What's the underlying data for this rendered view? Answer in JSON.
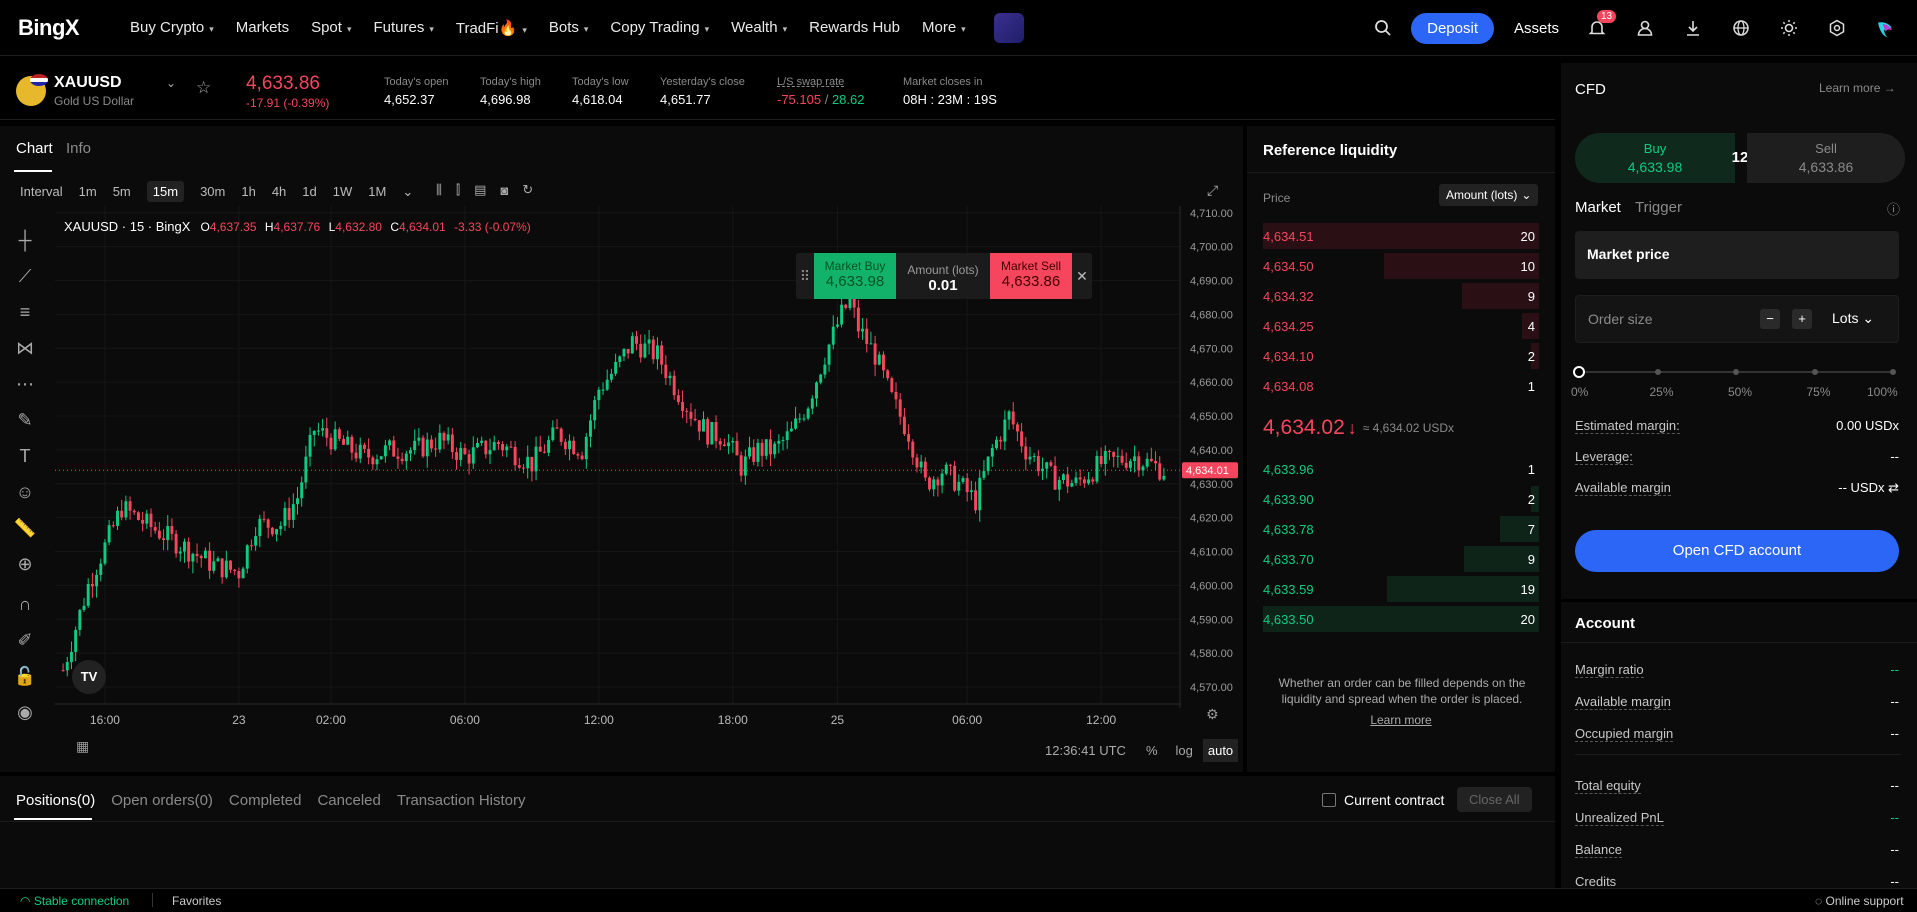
{
  "brand": {
    "logo": "BingX"
  },
  "nav": {
    "items": [
      {
        "label": "Buy Crypto",
        "caret": true
      },
      {
        "label": "Markets",
        "caret": false
      },
      {
        "label": "Spot",
        "caret": true
      },
      {
        "label": "Futures",
        "caret": true
      },
      {
        "label": "TradFi🔥",
        "caret": true
      },
      {
        "label": "Bots",
        "caret": true
      },
      {
        "label": "Copy Trading",
        "caret": true
      },
      {
        "label": "Wealth",
        "caret": true
      },
      {
        "label": "Rewards Hub",
        "caret": false
      },
      {
        "label": "More",
        "caret": true
      }
    ],
    "deposit_label": "Deposit",
    "assets_label": "Assets",
    "notification_count": "13"
  },
  "ticker": {
    "symbol": "XAUUSD",
    "name": "Gold US Dollar",
    "last_price": "4,633.86",
    "change": "-17.91 (-0.39%)",
    "stats": [
      {
        "label": "Today's open",
        "value": "4,652.37"
      },
      {
        "label": "Today's high",
        "value": "4,696.98"
      },
      {
        "label": "Today's low",
        "value": "4,618.04"
      },
      {
        "label": "Yesterday's close",
        "value": "4,651.77"
      }
    ],
    "swap_label": "L/S swap rate",
    "swap_long": "-75.105",
    "swap_sep": " / ",
    "swap_short": "28.62",
    "close_label": "Market closes in",
    "close_value": "08H : 23M : 19S"
  },
  "chart_tabs": {
    "chart": "Chart",
    "info": "Info"
  },
  "toolbar": {
    "interval_label": "Interval",
    "intervals": [
      "1m",
      "5m",
      "15m",
      "30m",
      "1h",
      "4h",
      "1d",
      "1W",
      "1M"
    ],
    "active_interval": "15m"
  },
  "legend": {
    "title": "XAUUSD · 15 · BingX",
    "o_label": "O",
    "o": "4,637.35",
    "h_label": "H",
    "h": "4,637.76",
    "l_label": "L",
    "l": "4,632.80",
    "c_label": "C",
    "c": "4,634.01",
    "chg": "-3.33 (-0.07%)"
  },
  "quick_trade": {
    "buy_label": "Market Buy",
    "buy_price": "4,633.98",
    "amount_label": "Amount (lots)",
    "amount": "0.01",
    "sell_label": "Market Sell",
    "sell_price": "4,633.86"
  },
  "chart_data": {
    "type": "candlestick",
    "ylim": [
      4565,
      4712
    ],
    "yticks": [
      "4,710.00",
      "4,700.00",
      "4,690.00",
      "4,680.00",
      "4,670.00",
      "4,660.00",
      "4,650.00",
      "4,640.00",
      "4,630.00",
      "4,620.00",
      "4,610.00",
      "4,600.00",
      "4,590.00",
      "4,580.00",
      "4,570.00"
    ],
    "ytick_values": [
      4710,
      4700,
      4690,
      4680,
      4670,
      4660,
      4650,
      4640,
      4630,
      4620,
      4610,
      4600,
      4590,
      4580,
      4570
    ],
    "xticks": [
      "16:00",
      "23",
      "02:00",
      "06:00",
      "12:00",
      "18:00",
      "25",
      "06:00",
      "12:00"
    ],
    "xtick_index": [
      10,
      42,
      64,
      96,
      128,
      160,
      185,
      216,
      248
    ],
    "candle_count": 264,
    "last_price_label": "4,634.01",
    "last_price": 4634.01,
    "close_path": [
      [
        0,
        4575
      ],
      [
        6,
        4600
      ],
      [
        14,
        4623
      ],
      [
        20,
        4618
      ],
      [
        28,
        4612
      ],
      [
        36,
        4606
      ],
      [
        42,
        4604
      ],
      [
        46,
        4618
      ],
      [
        52,
        4618
      ],
      [
        56,
        4626
      ],
      [
        60,
        4646
      ],
      [
        66,
        4642
      ],
      [
        72,
        4638
      ],
      [
        78,
        4640
      ],
      [
        84,
        4640
      ],
      [
        90,
        4643
      ],
      [
        96,
        4638
      ],
      [
        104,
        4642
      ],
      [
        112,
        4636
      ],
      [
        118,
        4645
      ],
      [
        124,
        4640
      ],
      [
        128,
        4658
      ],
      [
        132,
        4664
      ],
      [
        136,
        4672
      ],
      [
        142,
        4668
      ],
      [
        146,
        4659
      ],
      [
        150,
        4651
      ],
      [
        154,
        4645
      ],
      [
        158,
        4644
      ],
      [
        162,
        4635
      ],
      [
        166,
        4640
      ],
      [
        170,
        4640
      ],
      [
        174,
        4645
      ],
      [
        178,
        4654
      ],
      [
        182,
        4668
      ],
      [
        186,
        4680
      ],
      [
        188,
        4684
      ],
      [
        190,
        4676
      ],
      [
        194,
        4668
      ],
      [
        198,
        4655
      ],
      [
        202,
        4645
      ],
      [
        206,
        4630
      ],
      [
        210,
        4634
      ],
      [
        214,
        4630
      ],
      [
        218,
        4625
      ],
      [
        222,
        4640
      ],
      [
        226,
        4650
      ],
      [
        230,
        4640
      ],
      [
        236,
        4632
      ],
      [
        242,
        4630
      ],
      [
        248,
        4636
      ],
      [
        256,
        4638
      ],
      [
        263,
        4634
      ]
    ]
  },
  "axis_footer": {
    "time": "12:36:41 UTC",
    "pct": "%",
    "log": "log",
    "auto": "auto"
  },
  "liquidity": {
    "title": "Reference liquidity",
    "price_header": "Price",
    "unit_select": "Amount (lots)",
    "asks": [
      {
        "price": "4,634.51",
        "amount": "20",
        "depth": 1.0
      },
      {
        "price": "4,634.50",
        "amount": "10",
        "depth": 0.56
      },
      {
        "price": "4,634.32",
        "amount": "9",
        "depth": 0.28
      },
      {
        "price": "4,634.25",
        "amount": "4",
        "depth": 0.06
      },
      {
        "price": "4,634.10",
        "amount": "2",
        "depth": 0.03
      },
      {
        "price": "4,634.08",
        "amount": "1",
        "depth": 0.0
      }
    ],
    "mid_price": "4,634.02",
    "mid_equiv": "≈ 4,634.02 USDx",
    "bids": [
      {
        "price": "4,633.96",
        "amount": "1",
        "depth": 0.0
      },
      {
        "price": "4,633.90",
        "amount": "2",
        "depth": 0.03
      },
      {
        "price": "4,633.78",
        "amount": "7",
        "depth": 0.14
      },
      {
        "price": "4,633.70",
        "amount": "9",
        "depth": 0.27
      },
      {
        "price": "4,633.59",
        "amount": "19",
        "depth": 0.55
      },
      {
        "price": "4,633.50",
        "amount": "20",
        "depth": 1.0
      }
    ],
    "note": "Whether an order can be filled depends on the liquidity and spread when the order is placed.",
    "learn_more": "Learn more"
  },
  "cfd": {
    "title": "CFD",
    "learn_more": "Learn more",
    "buy_label": "Buy",
    "buy_price": "4,633.98",
    "spread": "12",
    "sell_label": "Sell",
    "sell_price": "4,633.86",
    "tab_market": "Market",
    "tab_trigger": "Trigger",
    "market_price": "Market price",
    "order_size_placeholder": "Order size",
    "lots_label": "Lots",
    "slider_marks": [
      "0%",
      "25%",
      "50%",
      "75%",
      "100%"
    ],
    "slider_value": 0,
    "est_margin_label": "Estimated margin:",
    "est_margin_value": "0.00 USDx",
    "leverage_label": "Leverage:",
    "leverage_value": "--",
    "avail_label": "Available margin",
    "avail_value": "-- USDx",
    "open_button": "Open CFD account"
  },
  "account": {
    "title": "Account",
    "rows": [
      {
        "label": "Margin ratio",
        "value": "--"
      },
      {
        "label": "Available margin",
        "value": "--"
      },
      {
        "label": "Occupied margin",
        "value": "--"
      },
      {
        "label": "Total equity",
        "value": "--"
      },
      {
        "label": "Unrealized PnL",
        "value": "--"
      },
      {
        "label": "Balance",
        "value": "--"
      },
      {
        "label": "Credits",
        "value": "--"
      }
    ]
  },
  "positions": {
    "tabs": [
      "Positions(0)",
      "Open orders(0)",
      "Completed",
      "Canceled",
      "Transaction History"
    ],
    "current_contract": "Current contract",
    "close_all": "Close All"
  },
  "footer": {
    "connection": "Stable connection",
    "favorites": "Favorites",
    "support": "Online support"
  },
  "colors": {
    "up": "#0ecb81",
    "down": "#f6465d",
    "accent": "#2b66f6"
  }
}
